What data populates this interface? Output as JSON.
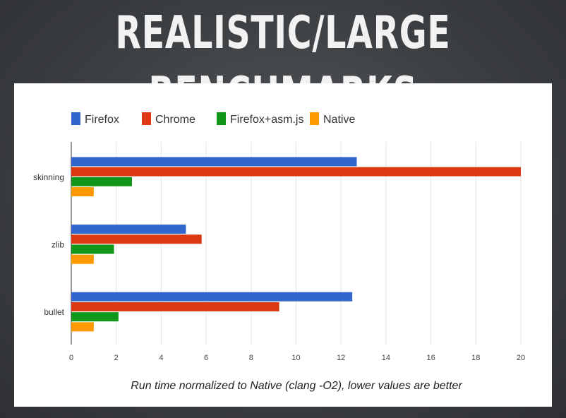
{
  "slide": {
    "title": "REALISTIC/LARGE BENCHMARKS"
  },
  "colors": {
    "firefox": "#3366cc",
    "chrome": "#dc3912",
    "firefox_asmjs": "#109618",
    "native": "#ff9900"
  },
  "chart_data": {
    "type": "bar",
    "orientation": "horizontal",
    "categories": [
      "skinning",
      "zlib",
      "bullet"
    ],
    "series": [
      {
        "name": "Firefox",
        "color": "#3366cc",
        "values": [
          12.7,
          5.1,
          12.5
        ]
      },
      {
        "name": "Chrome",
        "color": "#dc3912",
        "values": [
          20.0,
          5.8,
          9.25
        ]
      },
      {
        "name": "Firefox+asm.js",
        "color": "#109618",
        "values": [
          2.7,
          1.9,
          2.1
        ]
      },
      {
        "name": "Native",
        "color": "#ff9900",
        "values": [
          1.0,
          1.0,
          1.0
        ]
      }
    ],
    "xlabel": "Run time normalized to Native (clang -O2), lower values are better",
    "ylabel": "",
    "xlim": [
      0,
      20
    ],
    "xticks": [
      0,
      2,
      4,
      6,
      8,
      10,
      12,
      14,
      16,
      18,
      20
    ],
    "grid": true,
    "legend_position": "top-left"
  }
}
